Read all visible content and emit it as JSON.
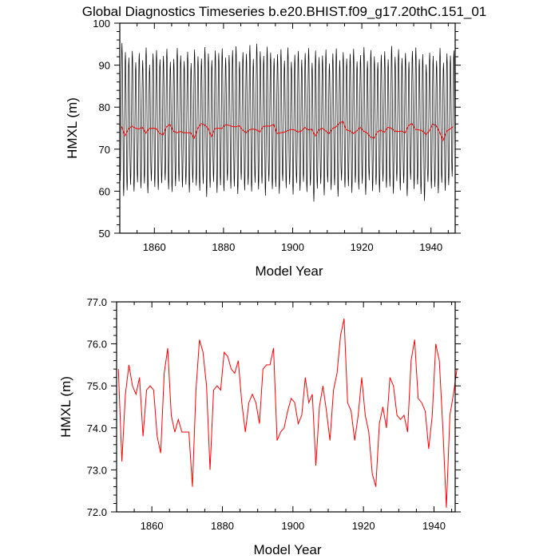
{
  "title": "Global Diagnostics Timeseries b.e20.BHIST.f09_g17.20thC.151_01",
  "colors": {
    "monthly": "#000000",
    "annual": "#ff0000",
    "axes": "#000000"
  },
  "chart_data": [
    {
      "type": "line",
      "name": "monthly-and-annual",
      "xlabel": "Model Year",
      "ylabel": "HMXL (m)",
      "xlim": [
        1850,
        1947
      ],
      "ylim": [
        50,
        100
      ],
      "xticks": [
        1860,
        1880,
        1900,
        1920,
        1940
      ],
      "xtick_labels": [
        "1860",
        "1880",
        "1900",
        "1920",
        "1940"
      ],
      "yticks": [
        50,
        60,
        70,
        80,
        90,
        100
      ],
      "ytick_labels": [
        "50",
        "60",
        "70",
        "80",
        "90",
        "100"
      ],
      "monthly_series": {
        "name": "monthly HMXL",
        "years_start": 1850,
        "years_count": 97,
        "monthly_max": [
          95.3,
          93.1,
          91.8,
          93.4,
          90.7,
          92.9,
          91.2,
          94.2,
          90.1,
          92.8,
          93.6,
          91.4,
          92.2,
          93.9,
          90.8,
          91.5,
          94.1,
          92.3,
          91.0,
          93.2,
          90.5,
          93.7,
          92.1,
          91.6,
          94.3,
          92.8,
          91.2,
          93.5,
          92.9,
          94.0,
          91.8,
          92.4,
          93.6,
          94.5,
          90.9,
          93.1,
          92.7,
          94.8,
          91.5,
          95.1,
          93.3,
          92.2,
          94.4,
          93.0,
          91.7,
          92.6,
          93.8,
          91.1,
          94.2,
          90.8,
          92.5,
          93.4,
          91.3,
          92.9,
          94.1,
          90.6,
          93.5,
          91.9,
          92.3,
          93.7,
          90.4,
          92.8,
          94.0,
          91.2,
          93.1,
          91.6,
          92.7,
          93.9,
          90.9,
          92.4,
          94.3,
          91.0,
          93.6,
          92.1,
          90.7,
          92.5,
          93.3,
          91.4,
          94.6,
          92.0,
          93.8,
          91.7,
          92.9,
          90.8,
          93.4,
          94.2,
          91.5,
          92.6,
          90.2,
          93.0,
          92.2,
          91.1,
          94.1,
          90.6,
          92.8,
          92.3,
          93.5
        ],
        "monthly_min": [
          62.5,
          58.8,
          60.2,
          61.5,
          59.9,
          62.1,
          60.7,
          61.8,
          59.5,
          62.4,
          61.0,
          60.3,
          61.9,
          62.6,
          60.4,
          59.8,
          61.2,
          62.3,
          60.9,
          61.6,
          59.7,
          62.0,
          61.3,
          60.1,
          61.7,
          58.6,
          60.8,
          62.2,
          59.6,
          61.4,
          60.0,
          62.5,
          60.6,
          61.1,
          59.3,
          62.7,
          60.2,
          61.5,
          59.9,
          62.0,
          60.4,
          61.8,
          58.9,
          62.3,
          60.5,
          61.0,
          59.4,
          62.4,
          60.7,
          61.6,
          59.2,
          61.9,
          60.1,
          62.2,
          59.8,
          61.3,
          57.5,
          60.6,
          61.7,
          59.0,
          62.1,
          60.3,
          61.4,
          58.7,
          62.5,
          60.9,
          61.2,
          59.6,
          62.0,
          60.4,
          61.8,
          59.1,
          62.6,
          60.0,
          61.5,
          59.7,
          62.3,
          60.8,
          61.1,
          59.4,
          62.4,
          60.2,
          61.9,
          58.8,
          62.7,
          60.5,
          61.6,
          59.3,
          57.7,
          62.2,
          60.6,
          61.0,
          59.5,
          62.0,
          60.1,
          61.4,
          63.5
        ]
      },
      "annual_series": {
        "name": "annual mean HMXL",
        "x_start": 1850.5,
        "values": [
          75.4,
          73.2,
          74.8,
          75.5,
          75.0,
          74.8,
          75.2,
          73.8,
          74.9,
          75.0,
          74.9,
          73.8,
          73.4,
          75.3,
          75.9,
          74.3,
          73.9,
          74.2,
          73.9,
          73.9,
          73.9,
          72.6,
          74.9,
          76.1,
          75.8,
          75.0,
          73.0,
          74.9,
          75.0,
          74.9,
          75.8,
          75.7,
          75.4,
          75.3,
          75.6,
          74.6,
          73.9,
          74.6,
          74.8,
          74.6,
          74.1,
          75.4,
          75.5,
          75.5,
          75.9,
          73.7,
          73.9,
          74.0,
          74.4,
          74.7,
          74.6,
          74.1,
          74.3,
          75.2,
          74.6,
          74.8,
          73.1,
          74.5,
          75.0,
          74.4,
          73.7,
          74.9,
          75.3,
          76.2,
          76.6,
          74.6,
          74.4,
          73.7,
          74.3,
          75.2,
          74.3,
          73.9,
          72.9,
          72.6,
          74.1,
          74.5,
          74.0,
          75.2,
          75.0,
          74.3,
          74.2,
          74.3,
          73.9,
          75.6,
          76.1,
          74.7,
          74.6,
          74.4,
          73.5,
          74.3,
          76.0,
          75.6,
          74.0,
          72.1,
          74.3,
          74.8,
          75.4
        ]
      }
    },
    {
      "type": "line",
      "name": "annual-only",
      "xlabel": "Model Year",
      "ylabel": "HMXL (m)",
      "xlim": [
        1850,
        1946
      ],
      "ylim": [
        72.0,
        77.0
      ],
      "xticks": [
        1860,
        1880,
        1900,
        1920,
        1940
      ],
      "xtick_labels": [
        "1860",
        "1880",
        "1900",
        "1920",
        "1940"
      ],
      "yticks": [
        72,
        73,
        74,
        75,
        76,
        77
      ],
      "ytick_labels": [
        "72.0",
        "73.0",
        "74.0",
        "75.0",
        "76.0",
        "77.0"
      ],
      "annual_series": {
        "name": "annual mean HMXL",
        "x_start": 1850.5,
        "values": [
          75.4,
          73.2,
          74.8,
          75.5,
          75.0,
          74.8,
          75.2,
          73.8,
          74.9,
          75.0,
          74.9,
          73.8,
          73.4,
          75.3,
          75.9,
          74.3,
          73.9,
          74.2,
          73.9,
          73.9,
          73.9,
          72.6,
          74.9,
          76.1,
          75.8,
          75.0,
          73.0,
          74.9,
          75.0,
          74.9,
          75.8,
          75.7,
          75.4,
          75.3,
          75.6,
          74.6,
          73.9,
          74.6,
          74.8,
          74.6,
          74.1,
          75.4,
          75.5,
          75.5,
          75.9,
          73.7,
          73.9,
          74.0,
          74.4,
          74.7,
          74.6,
          74.1,
          74.3,
          75.2,
          74.6,
          74.8,
          73.1,
          74.5,
          75.0,
          74.4,
          73.7,
          74.9,
          75.3,
          76.2,
          76.6,
          74.6,
          74.4,
          73.7,
          74.3,
          75.2,
          74.3,
          73.9,
          72.9,
          72.6,
          74.1,
          74.5,
          74.0,
          75.2,
          75.0,
          74.3,
          74.2,
          74.3,
          73.9,
          75.6,
          76.1,
          74.7,
          74.6,
          74.4,
          73.5,
          74.3,
          76.0,
          75.6,
          74.0,
          72.1,
          74.3,
          74.8,
          75.4
        ]
      }
    }
  ]
}
